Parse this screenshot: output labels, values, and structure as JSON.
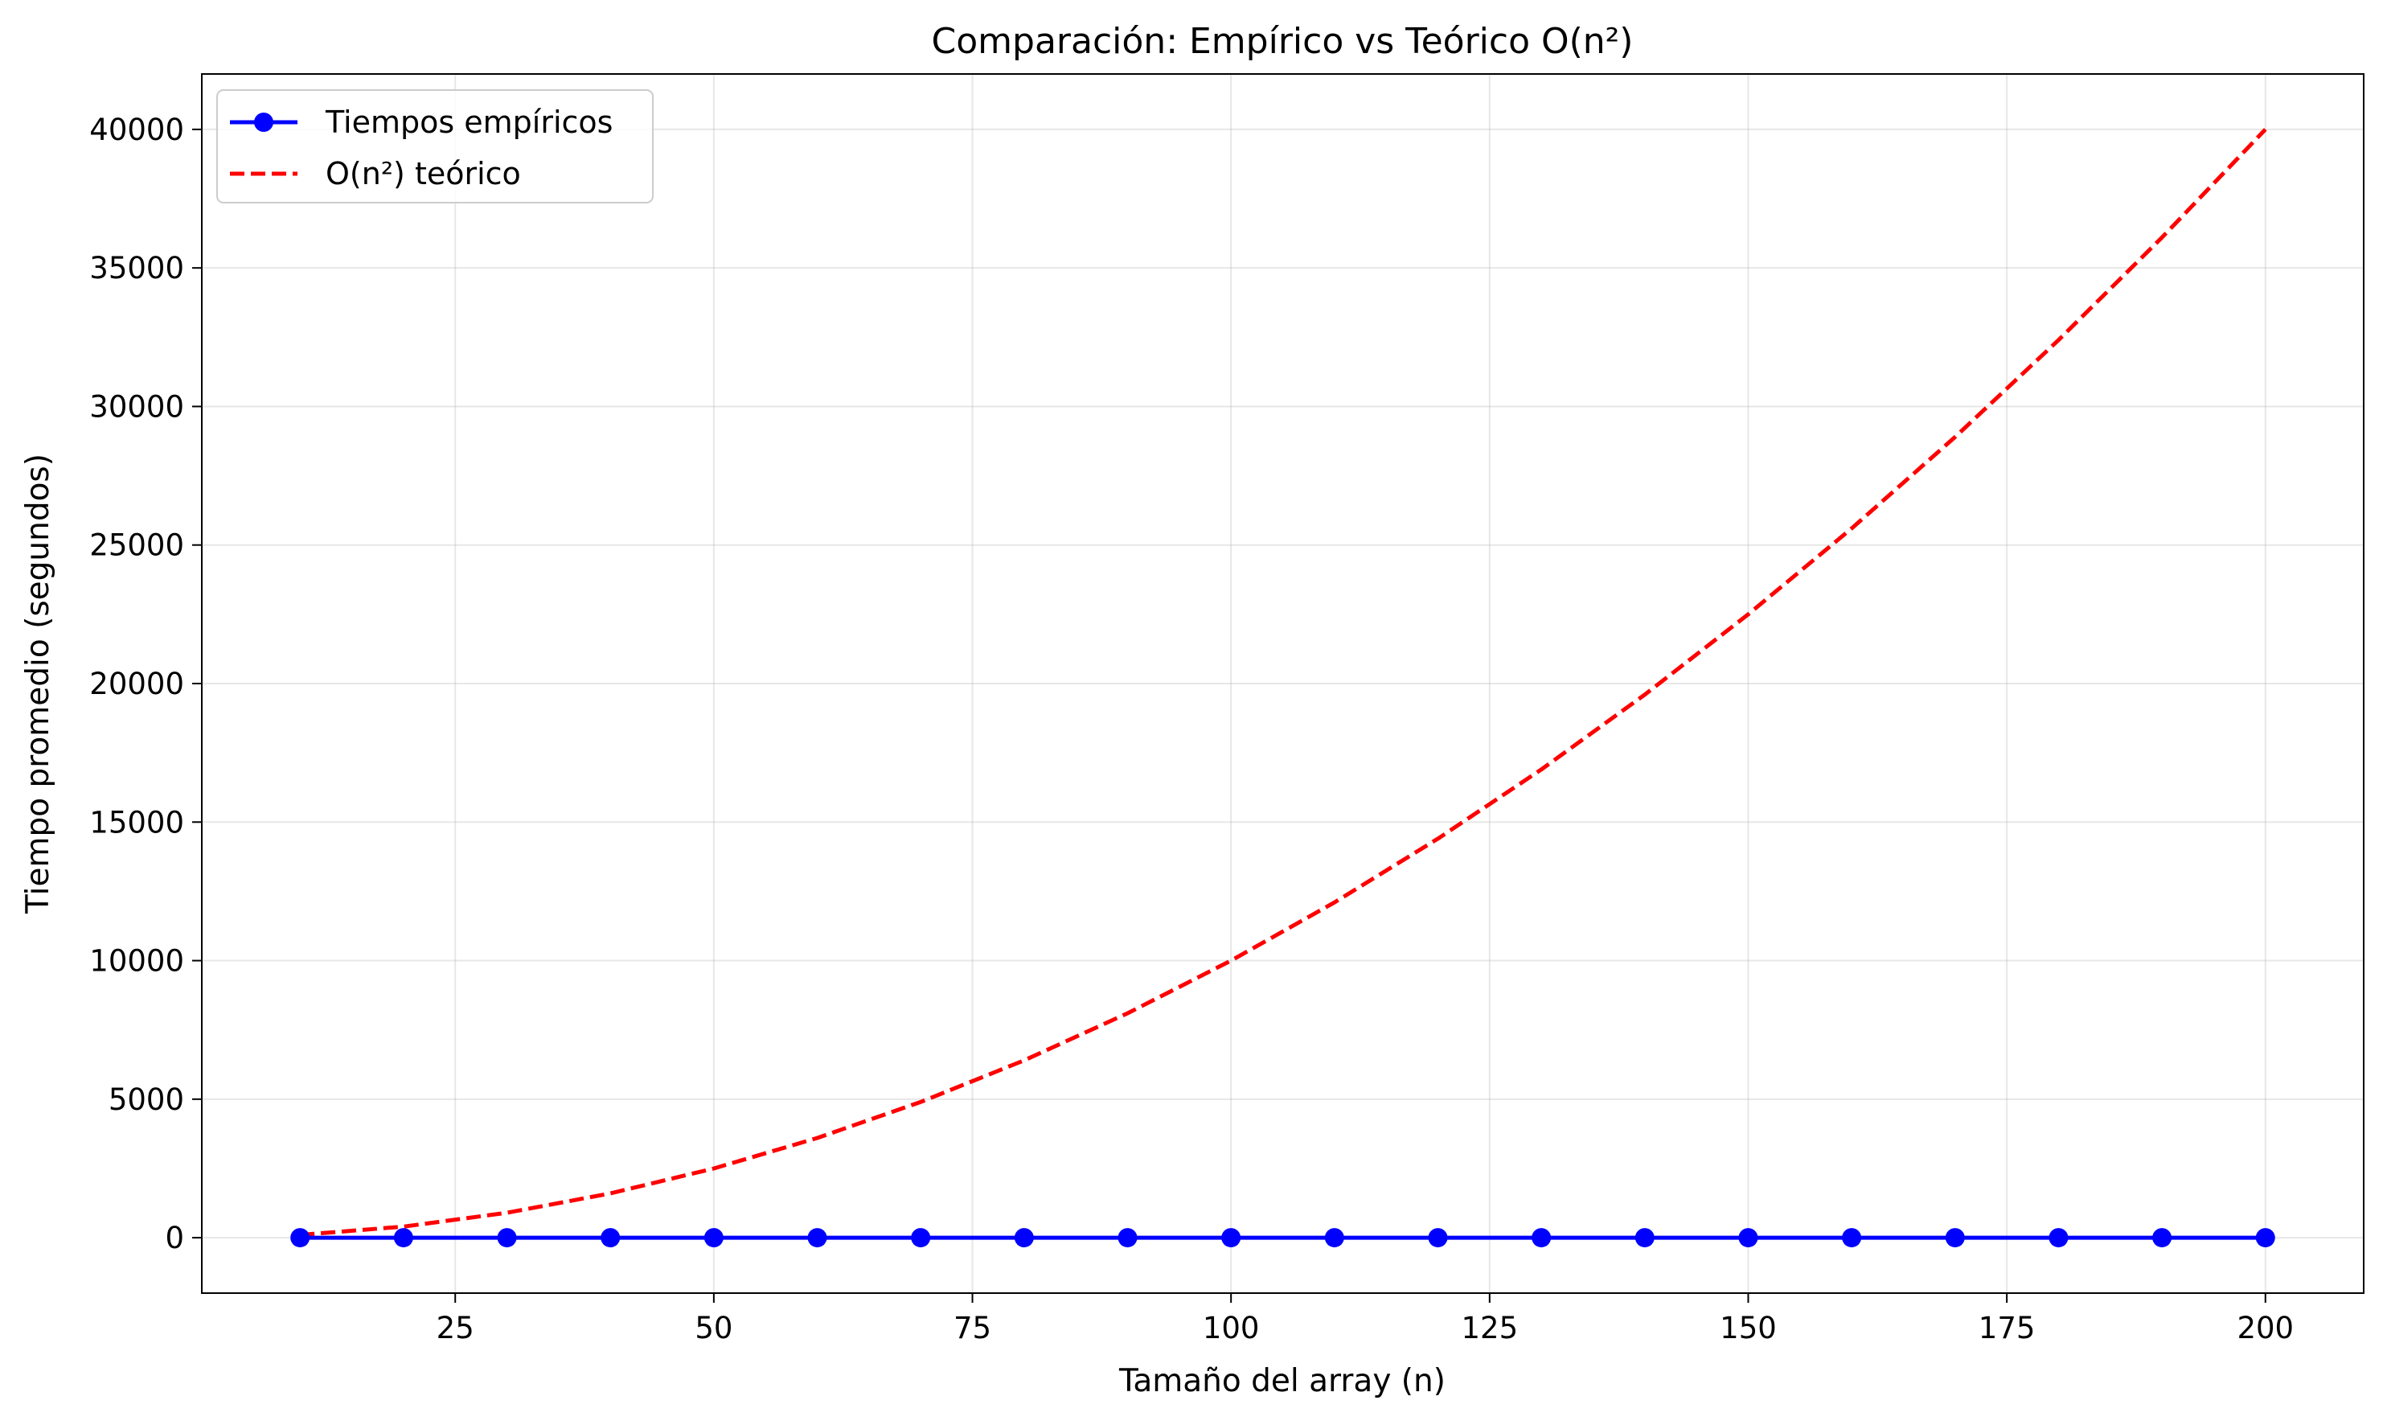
{
  "chart_data": {
    "type": "line",
    "title": "Comparación: Empírico vs Teórico O(n²)",
    "xlabel": "Tamaño del array (n)",
    "ylabel": "Tiempo promedio (segundos)",
    "xlim": [
      0.5,
      209.5
    ],
    "ylim": [
      -2000,
      42000
    ],
    "xticks": [
      25,
      50,
      75,
      100,
      125,
      150,
      175,
      200
    ],
    "yticks": [
      0,
      5000,
      10000,
      15000,
      20000,
      25000,
      30000,
      35000,
      40000
    ],
    "grid": true,
    "legend_position": "top-left",
    "series": [
      {
        "name": "Tiempos empíricos",
        "style": "solid-markers",
        "color": "#0000ff",
        "x": [
          10,
          20,
          30,
          40,
          50,
          60,
          70,
          80,
          90,
          100,
          110,
          120,
          130,
          140,
          150,
          160,
          170,
          180,
          190,
          200
        ],
        "y": [
          0,
          0,
          0,
          0,
          0,
          0,
          0,
          0,
          0,
          0,
          0,
          0,
          0,
          0,
          0,
          0,
          0,
          0,
          0,
          0
        ]
      },
      {
        "name": "O(n²) teórico",
        "style": "dashed",
        "color": "#ff0000",
        "x": [
          10,
          20,
          30,
          40,
          50,
          60,
          70,
          80,
          90,
          100,
          110,
          120,
          130,
          140,
          150,
          160,
          170,
          180,
          190,
          200
        ],
        "y": [
          100,
          400,
          900,
          1600,
          2500,
          3600,
          4900,
          6400,
          8100,
          10000,
          12100,
          14400,
          16900,
          19600,
          22500,
          25600,
          28900,
          32400,
          36100,
          40000
        ]
      }
    ]
  }
}
